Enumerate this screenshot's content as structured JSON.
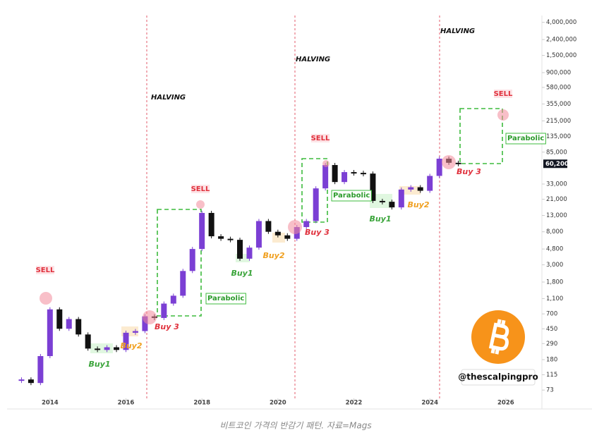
{
  "chart_data": {
    "type": "candlestick",
    "x": [
      2013.25,
      2013.5,
      2013.75,
      2014.0,
      2014.25,
      2014.5,
      2014.75,
      2015.0,
      2015.25,
      2015.5,
      2015.75,
      2016.0,
      2016.25,
      2016.5,
      2016.75,
      2017.0,
      2017.25,
      2017.5,
      2017.75,
      2018.0,
      2018.25,
      2018.5,
      2018.75,
      2019.0,
      2019.25,
      2019.5,
      2019.75,
      2020.0,
      2020.25,
      2020.5,
      2020.75,
      2021.0,
      2021.25,
      2021.5,
      2021.75,
      2022.0,
      2022.25,
      2022.5,
      2022.75,
      2023.0,
      2023.25,
      2023.5,
      2023.75,
      2024.0,
      2024.25,
      2024.5,
      2024.75
    ],
    "values": [
      100,
      90,
      200,
      800,
      450,
      600,
      380,
      250,
      240,
      260,
      240,
      400,
      420,
      650,
      620,
      950,
      1200,
      2500,
      4800,
      14000,
      7000,
      6500,
      6300,
      3600,
      5000,
      11000,
      8000,
      7200,
      6500,
      9200,
      11000,
      29000,
      58000,
      35000,
      47000,
      46000,
      45000,
      20000,
      19500,
      16500,
      28000,
      30000,
      27000,
      42000,
      70000,
      62000,
      60200
    ],
    "up_color": "#7b3fd4",
    "down_color": "#111111",
    "y_scale": "log",
    "xlim": [
      2012.87,
      2026.95
    ],
    "xticks": [
      2014,
      2016,
      2018,
      2020,
      2022,
      2024,
      2026
    ],
    "ylim": [
      57,
      4900000
    ],
    "yticks": [
      73,
      115,
      180,
      290,
      450,
      700,
      {
        "value": 1100,
        "label": "1,100"
      },
      {
        "value": 1800,
        "label": "1,800"
      },
      {
        "value": 3000,
        "label": "3,000"
      },
      {
        "value": 4800,
        "label": "4,800"
      },
      {
        "value": 8000,
        "label": "8,000"
      },
      {
        "value": 13000,
        "label": "13,000"
      },
      {
        "value": 21000,
        "label": "21,000"
      },
      {
        "value": 33000,
        "label": "33,000"
      },
      {
        "value": 85000,
        "label": "85,000"
      },
      {
        "value": 135000,
        "label": "135,000"
      },
      {
        "value": 215000,
        "label": "215,000"
      },
      {
        "value": 355000,
        "label": "355,000"
      },
      {
        "value": 580000,
        "label": "580,000"
      },
      {
        "value": 900000,
        "label": "900,000"
      },
      {
        "value": 1500000,
        "label": "1,500,000"
      },
      {
        "value": 2400000,
        "label": "2,400,000"
      },
      {
        "value": 4000000,
        "label": "4,000,000"
      }
    ],
    "last_price": {
      "value": 60200,
      "label": "60,200"
    },
    "halving_labels": [
      "HALVING",
      "HALVING",
      "HALVING"
    ],
    "sell_labels": [
      "SELL",
      "SELL",
      "SELL",
      "SELL"
    ],
    "buy3_labels": [
      "Buy 3",
      "Buy 3",
      "Buy 3"
    ],
    "buy1_labels": [
      "Buy1",
      "Buy1",
      "Buy1"
    ],
    "buy2_labels": [
      "Buy2",
      "Buy2",
      "Buy2"
    ],
    "parabolic_labels": [
      "Parabolic",
      "Parabolic",
      "Parabolic"
    ],
    "watermark": "@thescalpingpro"
  },
  "caption": "비트코인 가격의 반감기 패턴. 자료=Mags"
}
